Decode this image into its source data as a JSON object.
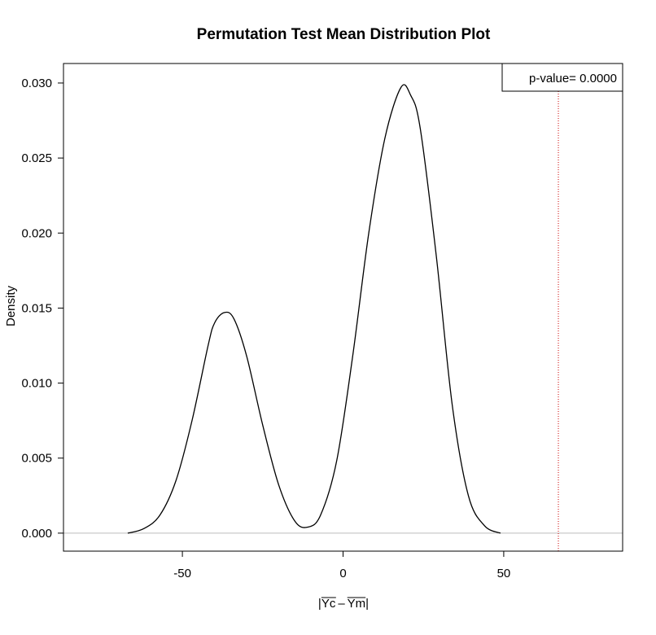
{
  "chart_data": {
    "type": "line",
    "title": "Permutation Test Mean Distribution Plot",
    "xlabel": "|Yc – Ym|",
    "xlabel_parts": {
      "left_bar": "|",
      "a": "Yc",
      "minus": "–",
      "b": "Ym",
      "right_bar": "|"
    },
    "ylabel": "Density",
    "xlim": [
      -87,
      87
    ],
    "ylim": [
      -0.0012,
      0.0313
    ],
    "x_ticks": [
      -50,
      0,
      50
    ],
    "x_tick_labels": [
      "-50",
      "0",
      "50"
    ],
    "y_ticks": [
      0,
      0.005,
      0.01,
      0.015,
      0.02,
      0.025,
      0.03
    ],
    "y_tick_labels": [
      "0.000",
      "0.005",
      "0.010",
      "0.015",
      "0.020",
      "0.025",
      "0.030"
    ],
    "baseline_y": 0,
    "observed_line": {
      "x": 67,
      "color": "#cc0000",
      "style": "dotted"
    },
    "legend": {
      "text": "p-value= 0.0000",
      "placement": "top-right"
    },
    "series": [
      {
        "x": [
          -67,
          -62,
          -57,
          -52,
          -47,
          -42,
          -40,
          -37,
          -34,
          -30,
          -25,
          -20,
          -15,
          -11,
          -7,
          -2,
          3,
          8,
          13,
          18,
          21,
          24,
          29,
          34,
          39,
          44,
          49
        ],
        "y": [
          0.0,
          0.0003,
          0.0012,
          0.0035,
          0.0075,
          0.0125,
          0.014,
          0.0147,
          0.0143,
          0.0118,
          0.0072,
          0.0032,
          0.0008,
          0.0004,
          0.0012,
          0.0048,
          0.0118,
          0.02,
          0.0263,
          0.0297,
          0.0292,
          0.027,
          0.0185,
          0.0085,
          0.0025,
          0.0005,
          0.0
        ],
        "color": "#000000"
      }
    ]
  }
}
